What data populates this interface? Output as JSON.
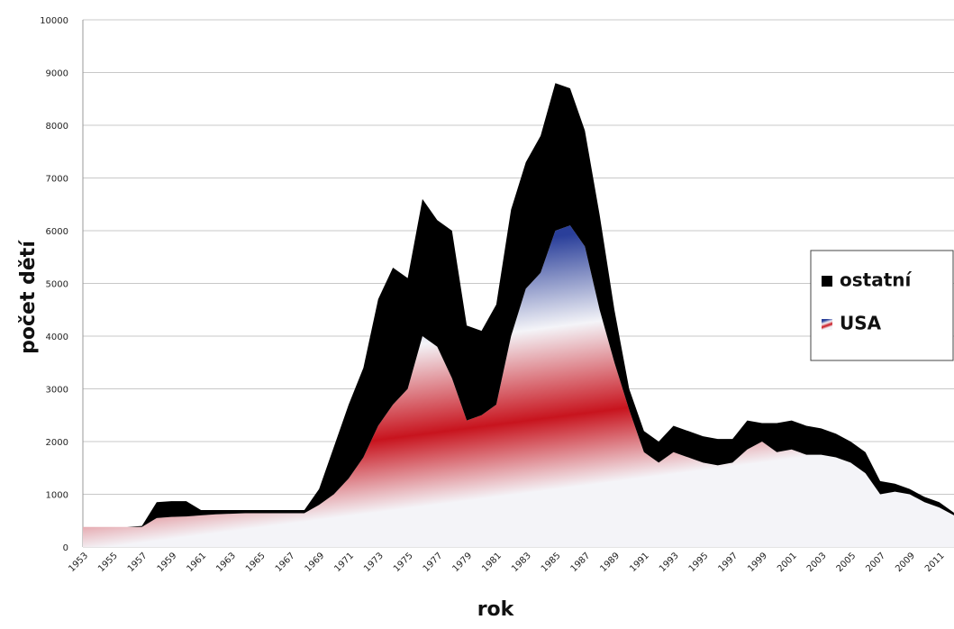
{
  "chart_data": {
    "type": "area",
    "stacked": true,
    "x_label": "rok",
    "y_label": "počet dětí",
    "x": [
      1953,
      1954,
      1955,
      1956,
      1957,
      1958,
      1959,
      1960,
      1961,
      1962,
      1963,
      1964,
      1965,
      1966,
      1967,
      1968,
      1969,
      1970,
      1971,
      1972,
      1973,
      1974,
      1975,
      1976,
      1977,
      1978,
      1979,
      1980,
      1981,
      1982,
      1983,
      1984,
      1985,
      1986,
      1987,
      1988,
      1989,
      1990,
      1991,
      1992,
      1993,
      1994,
      1995,
      1996,
      1997,
      1998,
      1999,
      2000,
      2001,
      2002,
      2003,
      2004,
      2005,
      2006,
      2007,
      2008,
      2009,
      2010,
      2011,
      2012
    ],
    "series": [
      {
        "name": "USA",
        "color": "#c8141e",
        "values": [
          380,
          380,
          380,
          380,
          380,
          550,
          570,
          580,
          600,
          620,
          630,
          640,
          640,
          640,
          640,
          640,
          800,
          1000,
          1300,
          1700,
          2300,
          2700,
          3000,
          4000,
          3800,
          3200,
          2400,
          2500,
          2700,
          4000,
          4900,
          5200,
          6000,
          6100,
          5700,
          4500,
          3500,
          2600,
          1800,
          1600,
          1800,
          1700,
          1600,
          1550,
          1600,
          1850,
          2000,
          1800,
          1850,
          1750,
          1750,
          1700,
          1600,
          1400,
          1000,
          1050,
          1000,
          850,
          750,
          600
        ]
      },
      {
        "name": "ostatní",
        "color": "#000000",
        "values": [
          0,
          0,
          0,
          0,
          20,
          300,
          300,
          290,
          100,
          80,
          70,
          60,
          60,
          60,
          60,
          60,
          300,
          900,
          1400,
          1700,
          2400,
          2600,
          2100,
          2600,
          2400,
          2800,
          1800,
          1600,
          1900,
          2400,
          2400,
          2600,
          2800,
          2600,
          2200,
          1800,
          1000,
          400,
          400,
          400,
          500,
          500,
          500,
          500,
          450,
          550,
          350,
          550,
          550,
          550,
          500,
          450,
          400,
          400,
          250,
          150,
          100,
          100,
          100,
          50
        ]
      }
    ],
    "xlim": [
      1953,
      2012
    ],
    "xticks": [
      1953,
      1955,
      1957,
      1959,
      1961,
      1963,
      1965,
      1967,
      1969,
      1971,
      1973,
      1975,
      1977,
      1979,
      1981,
      1983,
      1985,
      1987,
      1989,
      1991,
      1993,
      1995,
      1997,
      1999,
      2001,
      2003,
      2005,
      2007,
      2009,
      2011
    ],
    "ylim": [
      0,
      10000
    ],
    "yticks": [
      0,
      1000,
      2000,
      3000,
      4000,
      5000,
      6000,
      7000,
      8000,
      9000,
      10000
    ],
    "grid": true
  }
}
